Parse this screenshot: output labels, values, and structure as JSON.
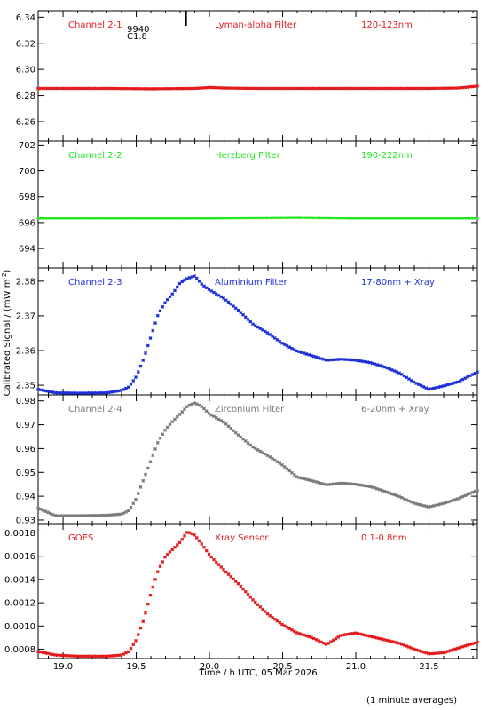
{
  "chart_data": {
    "type": "scatter",
    "x_axis": {
      "title": "Time / h UTC, 05 Mar 2026",
      "range": [
        18.83,
        21.83
      ],
      "ticks": [
        "19.0",
        "19.5",
        "20.0",
        "20.5",
        "21.0",
        "21.5"
      ]
    },
    "y_axis_title": "Calibrated Signal / (mW m",
    "y_axis_title_exponent": "-2",
    "y_axis_title_close": ")",
    "footer_note": "(1 minute averages)",
    "panels": [
      {
        "channel": "Channel 2-1",
        "filter": "Lyman-alpha Filter",
        "band": "120-123nm",
        "color": "#e31a1c",
        "ylim": [
          6.245,
          6.345
        ],
        "yticks": [
          "6.26",
          "6.28",
          "6.30",
          "6.32",
          "6.34"
        ],
        "annotation": [
          "9940",
          "C1.8"
        ],
        "annotation_x": 19.84,
        "series": {
          "x": [
            18.83,
            19.0,
            19.3,
            19.6,
            19.9,
            20.0,
            20.1,
            20.3,
            20.6,
            20.9,
            21.2,
            21.5,
            21.7,
            21.83
          ],
          "y": [
            6.2855,
            6.2855,
            6.2855,
            6.2852,
            6.2855,
            6.2862,
            6.2858,
            6.2855,
            6.2855,
            6.2855,
            6.2855,
            6.2855,
            6.2858,
            6.2872
          ]
        }
      },
      {
        "channel": "Channel 2-2",
        "filter": "Herzberg Filter",
        "band": "190-222nm",
        "color": "#22e822",
        "ylim": [
          692.5,
          702.3
        ],
        "yticks": [
          "694",
          "696",
          "698",
          "700",
          "702"
        ],
        "series": {
          "x": [
            18.83,
            19.5,
            20.0,
            20.6,
            21.0,
            21.5,
            21.83
          ],
          "y": [
            696.35,
            696.35,
            696.35,
            696.4,
            696.35,
            696.35,
            696.35
          ]
        }
      },
      {
        "channel": "Channel 2-3",
        "filter": "Aluminium Filter",
        "band": "17-80nm + Xray",
        "color": "#1c2fd6",
        "ylim": [
          2.3472,
          2.3838
        ],
        "yticks": [
          "2.35",
          "2.36",
          "2.37",
          "2.38"
        ],
        "series": {
          "x": [
            18.83,
            18.95,
            19.1,
            19.3,
            19.4,
            19.45,
            19.5,
            19.55,
            19.6,
            19.65,
            19.7,
            19.75,
            19.8,
            19.85,
            19.9,
            19.95,
            20.0,
            20.1,
            20.2,
            20.3,
            20.4,
            20.5,
            20.6,
            20.7,
            20.8,
            20.9,
            21.0,
            21.1,
            21.2,
            21.3,
            21.4,
            21.5,
            21.6,
            21.7,
            21.83
          ],
          "y": [
            2.3488,
            2.3478,
            2.3477,
            2.3478,
            2.3485,
            2.3495,
            2.3525,
            2.3575,
            2.364,
            2.3705,
            2.374,
            2.3765,
            2.3795,
            2.3808,
            2.3815,
            2.379,
            2.3775,
            2.375,
            2.3715,
            2.3675,
            2.365,
            2.362,
            2.3598,
            2.3585,
            2.3572,
            2.3575,
            2.3572,
            2.3565,
            2.3552,
            2.3535,
            2.3508,
            2.3488,
            2.3498,
            2.351,
            2.3538
          ]
        }
      },
      {
        "channel": "Channel 2-4",
        "filter": "Zirconium Filter",
        "band": "6-20nm + Xray",
        "color": "#7a7a7a",
        "ylim": [
          0.9285,
          0.9825
        ],
        "yticks": [
          "0.93",
          "0.94",
          "0.95",
          "0.96",
          "0.97",
          "0.98"
        ],
        "series": {
          "x": [
            18.83,
            18.95,
            19.1,
            19.3,
            19.4,
            19.45,
            19.5,
            19.55,
            19.6,
            19.65,
            19.7,
            19.75,
            19.8,
            19.85,
            19.9,
            19.95,
            20.0,
            20.1,
            20.2,
            20.3,
            20.4,
            20.5,
            20.6,
            20.7,
            20.8,
            20.9,
            21.0,
            21.1,
            21.2,
            21.3,
            21.4,
            21.5,
            21.6,
            21.7,
            21.83
          ],
          "y": [
            0.935,
            0.9318,
            0.9318,
            0.932,
            0.9325,
            0.934,
            0.939,
            0.947,
            0.955,
            0.963,
            0.968,
            0.9715,
            0.9745,
            0.9778,
            0.9792,
            0.9775,
            0.9745,
            0.971,
            0.9655,
            0.9605,
            0.957,
            0.953,
            0.948,
            0.9465,
            0.9448,
            0.9455,
            0.945,
            0.944,
            0.942,
            0.9398,
            0.937,
            0.9355,
            0.937,
            0.939,
            0.9425
          ]
        }
      },
      {
        "channel": "GOES",
        "filter": "Xray Sensor",
        "band": "0.1-0.8nm",
        "color": "#e31a1c",
        "ylim": [
          0.00072,
          0.00188
        ],
        "yticks": [
          "0.0008",
          "0.0010",
          "0.0012",
          "0.0014",
          "0.0016",
          "0.0018"
        ],
        "series": {
          "x": [
            18.83,
            18.95,
            19.1,
            19.3,
            19.4,
            19.45,
            19.5,
            19.55,
            19.6,
            19.65,
            19.7,
            19.75,
            19.8,
            19.85,
            19.9,
            19.95,
            20.0,
            20.1,
            20.2,
            20.3,
            20.4,
            20.5,
            20.6,
            20.7,
            20.8,
            20.9,
            21.0,
            21.1,
            21.2,
            21.3,
            21.4,
            21.5,
            21.6,
            21.7,
            21.83
          ],
          "y": [
            0.00078,
            0.00075,
            0.00074,
            0.00074,
            0.00075,
            0.00078,
            0.00088,
            0.00105,
            0.00128,
            0.00148,
            0.0016,
            0.00166,
            0.00172,
            0.00181,
            0.00178,
            0.0017,
            0.00161,
            0.00148,
            0.00136,
            0.00122,
            0.0011,
            0.00101,
            0.00094,
            0.0009,
            0.00084,
            0.00092,
            0.00094,
            0.00091,
            0.00088,
            0.00085,
            0.0008,
            0.00076,
            0.00077,
            0.00081,
            0.00086
          ]
        }
      }
    ]
  }
}
